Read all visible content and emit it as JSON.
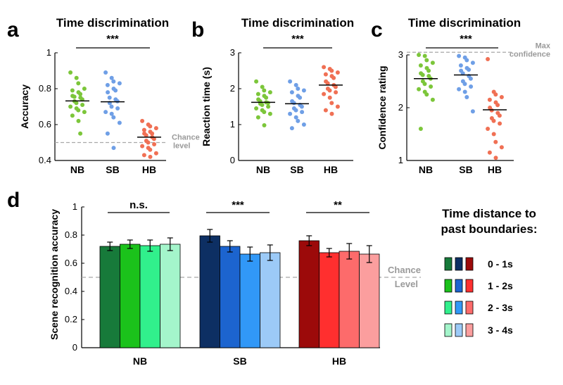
{
  "chart_data": [
    {
      "panel": "a",
      "type": "scatter",
      "title": "Time discrimination",
      "ylabel": "Accuracy",
      "ylim": [
        0.4,
        1
      ],
      "yticks": [
        "0.4",
        "0.6",
        "0.8",
        "1"
      ],
      "categories": [
        "NB",
        "SB",
        "HB"
      ],
      "colors": [
        "#7cc63a",
        "#6f9fe6",
        "#f07054"
      ],
      "means": [
        0.732,
        0.727,
        0.53
      ],
      "points": [
        [
          0.89,
          0.86,
          0.83,
          0.8,
          0.79,
          0.78,
          0.77,
          0.76,
          0.755,
          0.75,
          0.74,
          0.73,
          0.72,
          0.71,
          0.7,
          0.69,
          0.68,
          0.67,
          0.65,
          0.62,
          0.55
        ],
        [
          0.89,
          0.86,
          0.84,
          0.83,
          0.82,
          0.8,
          0.79,
          0.78,
          0.75,
          0.74,
          0.73,
          0.72,
          0.7,
          0.69,
          0.67,
          0.66,
          0.64,
          0.61,
          0.55,
          0.47
        ],
        [
          0.62,
          0.6,
          0.59,
          0.58,
          0.57,
          0.56,
          0.55,
          0.55,
          0.54,
          0.53,
          0.52,
          0.51,
          0.5,
          0.49,
          0.48,
          0.47,
          0.46,
          0.44,
          0.43,
          0.42
        ]
      ],
      "reference_line": {
        "value": 0.5,
        "label_lines": [
          "Chance",
          "level"
        ]
      },
      "significance": "***"
    },
    {
      "panel": "b",
      "type": "scatter",
      "title": "Time discrimination",
      "ylabel": "Reaction time (s)",
      "ylim": [
        0,
        3
      ],
      "yticks": [
        "0",
        "1",
        "2",
        "3"
      ],
      "categories": [
        "NB",
        "SB",
        "HB"
      ],
      "colors": [
        "#7cc63a",
        "#6f9fe6",
        "#f07054"
      ],
      "means": [
        1.62,
        1.58,
        2.1
      ],
      "points": [
        [
          2.2,
          2.05,
          1.95,
          1.9,
          1.85,
          1.8,
          1.75,
          1.7,
          1.65,
          1.62,
          1.6,
          1.58,
          1.55,
          1.5,
          1.45,
          1.4,
          1.35,
          1.3,
          1.2,
          0.98
        ],
        [
          2.2,
          2.1,
          2.0,
          1.95,
          1.9,
          1.8,
          1.75,
          1.65,
          1.6,
          1.55,
          1.5,
          1.45,
          1.4,
          1.35,
          1.3,
          1.2,
          1.1,
          1.0,
          0.9
        ],
        [
          2.6,
          2.55,
          2.5,
          2.45,
          2.4,
          2.35,
          2.3,
          2.2,
          2.15,
          2.1,
          2.05,
          2.0,
          1.95,
          1.9,
          1.85,
          1.75,
          1.6,
          1.5,
          1.4,
          1.3
        ]
      ],
      "significance": "***"
    },
    {
      "panel": "c",
      "type": "scatter",
      "title": "Time discrimination",
      "ylabel": "Confidence rating",
      "ylim": [
        1,
        3
      ],
      "yticks": [
        "1",
        "2",
        "3"
      ],
      "categories": [
        "NB",
        "SB",
        "HB"
      ],
      "colors": [
        "#7cc63a",
        "#6f9fe6",
        "#f07054"
      ],
      "means": [
        2.55,
        2.62,
        1.96
      ],
      "points": [
        [
          3.0,
          2.98,
          2.9,
          2.85,
          2.8,
          2.75,
          2.7,
          2.65,
          2.62,
          2.6,
          2.55,
          2.5,
          2.45,
          2.4,
          2.35,
          2.3,
          2.25,
          2.15,
          1.6
        ],
        [
          2.98,
          2.95,
          2.9,
          2.85,
          2.8,
          2.75,
          2.72,
          2.7,
          2.65,
          2.6,
          2.55,
          2.5,
          2.45,
          2.4,
          2.35,
          2.3,
          2.2,
          1.93
        ],
        [
          2.92,
          2.3,
          2.25,
          2.2,
          2.15,
          2.1,
          2.05,
          2.0,
          1.95,
          1.9,
          1.85,
          1.8,
          1.75,
          1.7,
          1.6,
          1.5,
          1.35,
          1.25,
          1.15,
          1.05
        ]
      ],
      "reference_line": {
        "value": 3.05,
        "label_lines": [
          "Max",
          "confidence"
        ]
      },
      "significance": "***"
    },
    {
      "panel": "d",
      "type": "bar",
      "ylabel": "Scene recognition accuracy",
      "ylim": [
        0,
        1
      ],
      "yticks": [
        "0",
        "0.2",
        "0.4",
        "0.6",
        "0.8",
        "1"
      ],
      "categories": [
        "NB",
        "SB",
        "HB"
      ],
      "series": [
        {
          "name": "0 - 1s",
          "values": [
            0.72,
            0.795,
            0.76
          ],
          "errors": [
            0.03,
            0.045,
            0.035
          ],
          "colors": [
            "#177a3a",
            "#0d2f63",
            "#9c0a0a"
          ]
        },
        {
          "name": "1 - 2s",
          "values": [
            0.735,
            0.72,
            0.675
          ],
          "errors": [
            0.03,
            0.04,
            0.03
          ],
          "colors": [
            "#1bc21b",
            "#1c64cf",
            "#ff2f2f"
          ]
        },
        {
          "name": "2 - 3s",
          "values": [
            0.725,
            0.665,
            0.685
          ],
          "errors": [
            0.04,
            0.05,
            0.055
          ],
          "colors": [
            "#31f08c",
            "#3198f7",
            "#fd6b6b"
          ]
        },
        {
          "name": "3 - 4s",
          "values": [
            0.735,
            0.675,
            0.665
          ],
          "errors": [
            0.045,
            0.055,
            0.06
          ],
          "colors": [
            "#a4f5cb",
            "#9ccaf7",
            "#fb9e9e"
          ]
        }
      ],
      "reference_line": {
        "value": 0.5,
        "label_lines": [
          "Chance",
          "Level"
        ]
      },
      "significance": [
        "n.s.",
        "***",
        "**"
      ],
      "legend_title_lines": [
        "Time distance to",
        "past boundaries:"
      ]
    }
  ]
}
